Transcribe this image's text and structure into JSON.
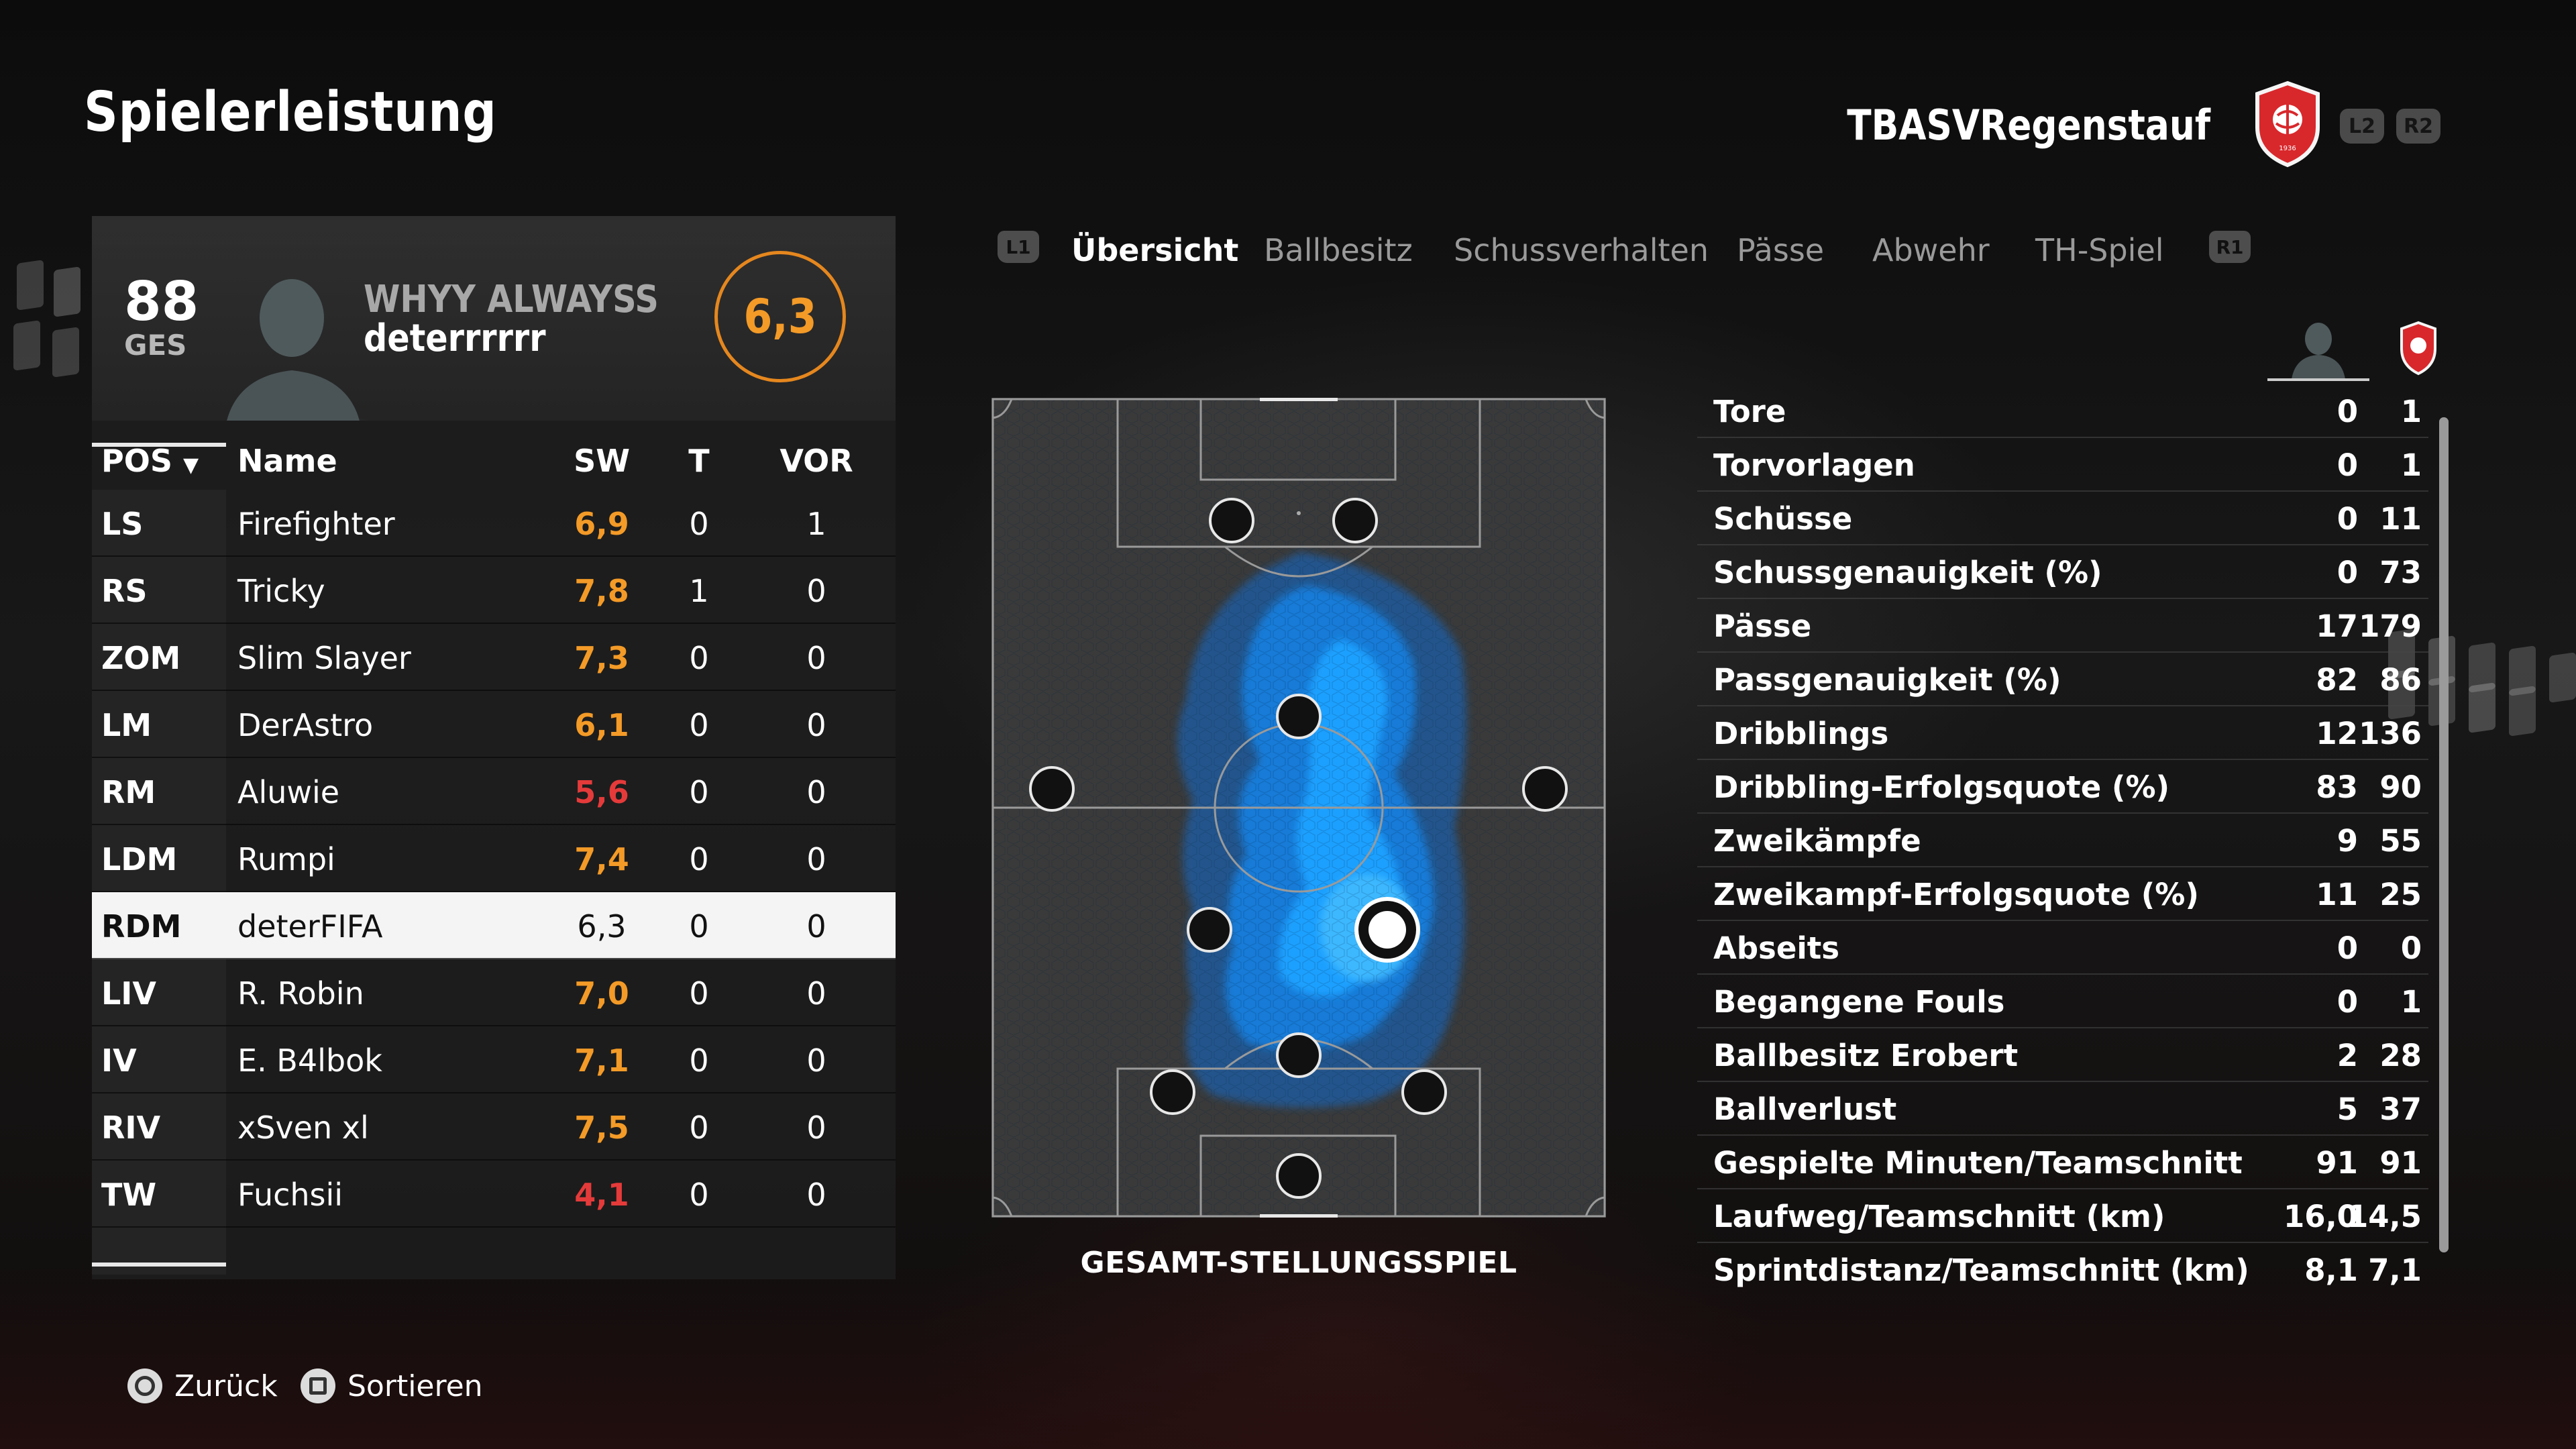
{
  "header": {
    "title": "Spielerleistung",
    "team_name": "TBASVRegenstauf",
    "l2": "L2",
    "r2": "R2"
  },
  "player": {
    "overall": "88",
    "overall_label": "GES",
    "name_line1": "WHYY ALWAYSS",
    "name_line2": "deterrrrrr",
    "rating": "6,3"
  },
  "lineup": {
    "columns": [
      "POS",
      "Name",
      "SW",
      "T",
      "VOR"
    ],
    "rows": [
      {
        "pos": "LS",
        "name": "Firefighter",
        "sw": "6,9",
        "t": "0",
        "vor": "1"
      },
      {
        "pos": "RS",
        "name": "Tricky",
        "sw": "7,8",
        "t": "1",
        "vor": "0"
      },
      {
        "pos": "ZOM",
        "name": "Slim Slayer",
        "sw": "7,3",
        "t": "0",
        "vor": "0"
      },
      {
        "pos": "LM",
        "name": "DerAstro",
        "sw": "6,1",
        "t": "0",
        "vor": "0"
      },
      {
        "pos": "RM",
        "name": "Aluwie",
        "sw": "5,6",
        "t": "0",
        "vor": "0"
      },
      {
        "pos": "LDM",
        "name": "Rumpi",
        "sw": "7,4",
        "t": "0",
        "vor": "0"
      },
      {
        "pos": "RDM",
        "name": "deterFIFA",
        "sw": "6,3",
        "t": "0",
        "vor": "0"
      },
      {
        "pos": "LIV",
        "name": "R. Robin",
        "sw": "7,0",
        "t": "0",
        "vor": "0"
      },
      {
        "pos": "IV",
        "name": "E. B4lbok",
        "sw": "7,1",
        "t": "0",
        "vor": "0"
      },
      {
        "pos": "RIV",
        "name": "xSven xl",
        "sw": "7,5",
        "t": "0",
        "vor": "0"
      },
      {
        "pos": "TW",
        "name": "Fuchsii",
        "sw": "4,1",
        "t": "0",
        "vor": "0"
      }
    ]
  },
  "tabs": {
    "l1": "L1",
    "r1": "R1",
    "items": [
      {
        "label": "Übersicht",
        "active": true
      },
      {
        "label": "Ballbesitz",
        "active": false
      },
      {
        "label": "Schussverhalten",
        "active": false
      },
      {
        "label": "Pässe",
        "active": false
      },
      {
        "label": "Abwehr",
        "active": false
      },
      {
        "label": "TH-Spiel",
        "active": false
      }
    ]
  },
  "pitch": {
    "caption": "GESAMT-STELLUNGSSPIEL"
  },
  "stats": [
    {
      "label": "Tore",
      "player": "0",
      "team": "1"
    },
    {
      "label": "Torvorlagen",
      "player": "0",
      "team": "1"
    },
    {
      "label": "Schüsse",
      "player": "0",
      "team": "11"
    },
    {
      "label": "Schussgenauigkeit (%)",
      "player": "0",
      "team": "73"
    },
    {
      "label": "Pässe",
      "player": "17",
      "team": "179"
    },
    {
      "label": "Passgenauigkeit (%)",
      "player": "82",
      "team": "86"
    },
    {
      "label": "Dribblings",
      "player": "12",
      "team": "136"
    },
    {
      "label": "Dribbling-Erfolgsquote (%)",
      "player": "83",
      "team": "90"
    },
    {
      "label": "Zweikämpfe",
      "player": "9",
      "team": "55"
    },
    {
      "label": "Zweikampf-Erfolgsquote (%)",
      "player": "11",
      "team": "25"
    },
    {
      "label": "Abseits",
      "player": "0",
      "team": "0"
    },
    {
      "label": "Begangene Fouls",
      "player": "0",
      "team": "1"
    },
    {
      "label": "Ballbesitz Erobert",
      "player": "2",
      "team": "28"
    },
    {
      "label": "Ballverlust",
      "player": "5",
      "team": "37"
    },
    {
      "label": "Gespielte Minuten/Teamschnitt",
      "player": "91",
      "team": "91"
    },
    {
      "label": "Laufweg/Teamschnitt (km)",
      "player": "16,0",
      "team": "14,5"
    },
    {
      "label": "Sprintdistanz/Teamschnitt (km)",
      "player": "8,1",
      "team": "7,1"
    }
  ],
  "footer": {
    "back": "Zurück",
    "sort": "Sortieren"
  },
  "colors": {
    "rating_orange": "#f39a27",
    "rating_red": "#e53a3a",
    "heatmap_blue": "#1e9bff",
    "crest_red": "#d8282c"
  }
}
